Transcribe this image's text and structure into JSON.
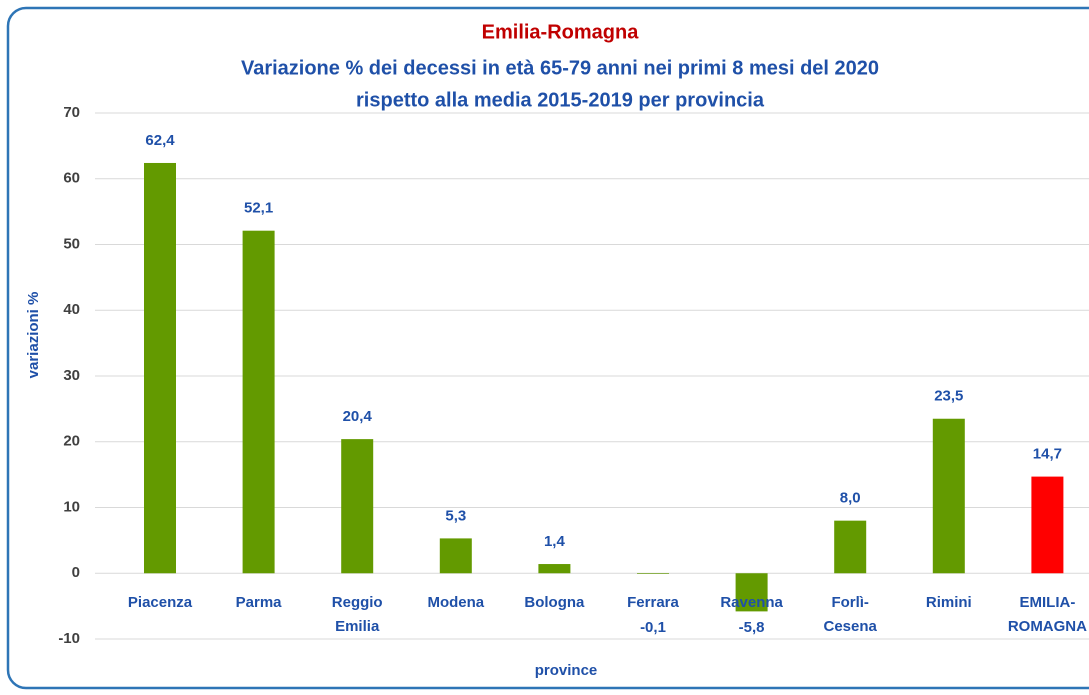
{
  "chart_data": {
    "type": "bar",
    "title": "Emilia-Romagna",
    "subtitle": [
      "Variazione % dei decessi in età 65-79 anni nei primi 8 mesi del 2020",
      "rispetto alla media 2015-2019 per provincia"
    ],
    "x_label": "province",
    "y_label": "variazioni %",
    "categories": [
      "Piacenza",
      "Parma",
      "Reggio Emilia",
      "Modena",
      "Bologna",
      "Ferrara",
      "Ravenna",
      "Forlì-Cesena",
      "Rimini",
      "EMILIA-ROMAGNA"
    ],
    "values": [
      62.4,
      52.1,
      20.4,
      5.3,
      1.4,
      -0.1,
      -5.8,
      8.0,
      23.5,
      14.7
    ],
    "value_labels": [
      "62,4",
      "52,1",
      "20,4",
      "5,3",
      "1,4",
      "-0,1",
      "-5,8",
      "8,0",
      "23,5",
      "14,7"
    ],
    "colors": [
      "#639a00",
      "#639a00",
      "#639a00",
      "#639a00",
      "#639a00",
      "#639a00",
      "#639a00",
      "#639a00",
      "#639a00",
      "#ff0000"
    ],
    "ylim": [
      -10,
      70
    ],
    "yticks": [
      -10,
      0,
      10,
      20,
      30,
      40,
      50,
      60,
      70
    ],
    "grid": true
  }
}
